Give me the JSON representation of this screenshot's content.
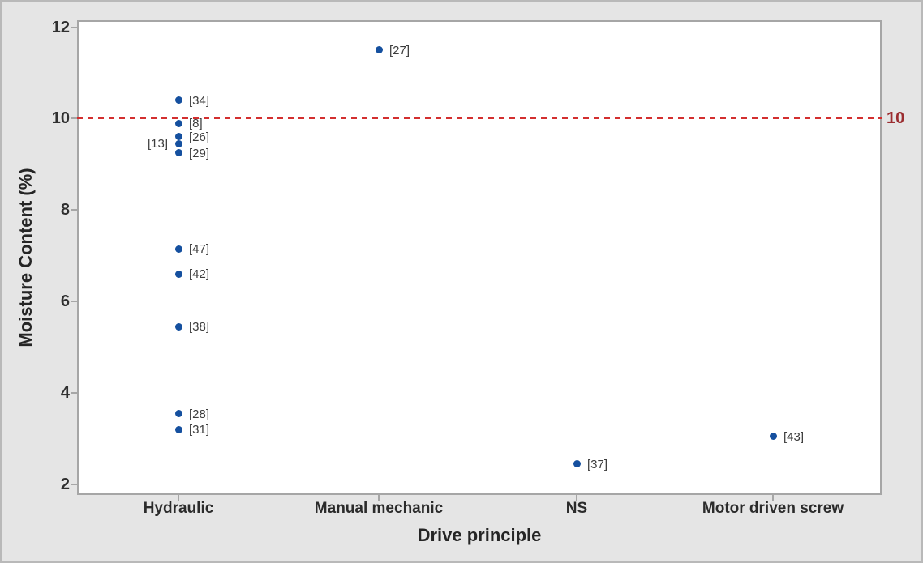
{
  "figure": {
    "background": "#e5e5e5",
    "plot_background": "#ffffff",
    "border_color": "#b9b9b9",
    "axis_color": "#a6a6a6"
  },
  "chart_data": {
    "type": "scatter",
    "title": "",
    "xlabel": "Drive principle",
    "ylabel": "Moisture Content (%)",
    "categories": [
      "Hydraulic",
      "Manual mechanic",
      "NS",
      "Motor driven screw"
    ],
    "y_ticks": [
      2,
      4,
      6,
      8,
      10,
      12
    ],
    "ylim": [
      1.77,
      12.15
    ],
    "grid": false,
    "legend": "none",
    "point_color": "#15509f",
    "reference_line": {
      "y": 10,
      "label": "10",
      "style": "dashed",
      "line_color": "#d32f2f",
      "label_color": "#9b2d30"
    },
    "points": [
      {
        "category": "Hydraulic",
        "y": 11.5,
        "label": "[27]",
        "label_side": "right",
        "note": "plotted-under-manual-mechanic-not-used"
      },
      {
        "category": "Hydraulic",
        "y": 10.4,
        "label": "[34]",
        "label_side": "right"
      },
      {
        "category": "Hydraulic",
        "y": 9.9,
        "label": "[8]",
        "label_side": "right"
      },
      {
        "category": "Hydraulic",
        "y": 9.6,
        "label": "[26]",
        "label_side": "right"
      },
      {
        "category": "Hydraulic",
        "y": 9.45,
        "label": "[13]",
        "label_side": "left"
      },
      {
        "category": "Hydraulic",
        "y": 9.25,
        "label": "[29]",
        "label_side": "right"
      },
      {
        "category": "Hydraulic",
        "y": 7.15,
        "label": "[47]",
        "label_side": "right"
      },
      {
        "category": "Hydraulic",
        "y": 6.6,
        "label": "[42]",
        "label_side": "right"
      },
      {
        "category": "Hydraulic",
        "y": 5.45,
        "label": "[38]",
        "label_side": "right"
      },
      {
        "category": "Hydraulic",
        "y": 3.55,
        "label": "[28]",
        "label_side": "right"
      },
      {
        "category": "Hydraulic",
        "y": 3.2,
        "label": "[31]",
        "label_side": "right"
      },
      {
        "category": "Manual mechanic",
        "y": 11.5,
        "label": "[27]",
        "label_side": "right"
      },
      {
        "category": "NS",
        "y": 2.45,
        "label": "[37]",
        "label_side": "right"
      },
      {
        "category": "Motor driven screw",
        "y": 3.05,
        "label": "[43]",
        "label_side": "right"
      }
    ]
  }
}
